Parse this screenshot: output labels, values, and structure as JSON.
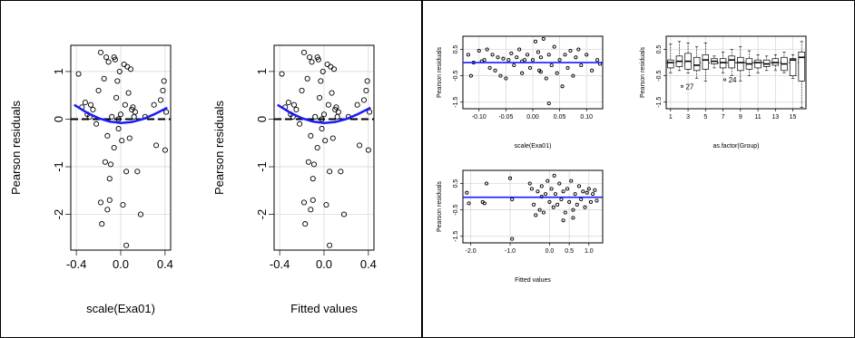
{
  "colors": {
    "fit_line": "#1a1aff",
    "points": "#000000",
    "grid": "#d3d3d3",
    "zero_line": "#000000"
  },
  "chart_data": [
    {
      "type": "scatter",
      "xlabel": "scale(Exa01)",
      "ylabel": "Pearson residuals",
      "xlim": [
        -0.45,
        0.45
      ],
      "ylim": [
        -2.75,
        1.55
      ],
      "xticks": [
        -0.4,
        0.0,
        0.4
      ],
      "xtick_labels": [
        "-0.4",
        "0.0",
        "0.4"
      ],
      "yticks": [
        -2,
        -1,
        0,
        1
      ],
      "ytick_labels": [
        "-2",
        "-1",
        "0",
        "1"
      ],
      "grid": true,
      "zero_line": "dashed",
      "fit_curve": [
        [
          -0.42,
          0.3
        ],
        [
          -0.3,
          0.13
        ],
        [
          -0.2,
          0.02
        ],
        [
          -0.1,
          -0.05
        ],
        [
          0.0,
          -0.08
        ],
        [
          0.1,
          -0.06
        ],
        [
          0.2,
          0.0
        ],
        [
          0.3,
          0.1
        ],
        [
          0.42,
          0.24
        ]
      ],
      "points": [
        [
          -0.38,
          0.95
        ],
        [
          -0.35,
          0.25
        ],
        [
          -0.32,
          0.35
        ],
        [
          -0.3,
          0.1
        ],
        [
          -0.28,
          0.05
        ],
        [
          -0.27,
          0.3
        ],
        [
          -0.25,
          0.2
        ],
        [
          -0.22,
          -0.1
        ],
        [
          -0.2,
          0.6
        ],
        [
          -0.18,
          1.4
        ],
        [
          -0.18,
          -1.75
        ],
        [
          -0.17,
          -2.2
        ],
        [
          -0.15,
          0.85
        ],
        [
          -0.14,
          -0.9
        ],
        [
          -0.13,
          1.3
        ],
        [
          -0.12,
          -0.35
        ],
        [
          -0.12,
          -1.9
        ],
        [
          -0.11,
          1.2
        ],
        [
          -0.1,
          -1.7
        ],
        [
          -0.1,
          -1.25
        ],
        [
          -0.09,
          -0.95
        ],
        [
          -0.08,
          0.05
        ],
        [
          -0.06,
          1.3
        ],
        [
          -0.06,
          -0.6
        ],
        [
          -0.05,
          1.25
        ],
        [
          -0.04,
          0.45
        ],
        [
          -0.03,
          0.8
        ],
        [
          -0.02,
          0.0
        ],
        [
          -0.02,
          -0.2
        ],
        [
          -0.01,
          1.0
        ],
        [
          0.0,
          0.1
        ],
        [
          0.01,
          -0.45
        ],
        [
          0.02,
          -1.8
        ],
        [
          0.03,
          1.15
        ],
        [
          0.04,
          0.3
        ],
        [
          0.05,
          -1.1
        ],
        [
          0.05,
          -2.65
        ],
        [
          0.06,
          1.1
        ],
        [
          0.07,
          0.55
        ],
        [
          0.08,
          -0.4
        ],
        [
          0.09,
          1.05
        ],
        [
          0.1,
          0.2
        ],
        [
          0.11,
          0.25
        ],
        [
          0.12,
          0.05
        ],
        [
          0.13,
          0.15
        ],
        [
          0.15,
          -1.1
        ],
        [
          0.18,
          -2.0
        ],
        [
          0.22,
          0.05
        ],
        [
          0.3,
          0.3
        ],
        [
          0.32,
          -0.55
        ],
        [
          0.36,
          0.4
        ],
        [
          0.38,
          0.6
        ],
        [
          0.39,
          0.8
        ],
        [
          0.4,
          -0.65
        ],
        [
          0.41,
          0.15
        ]
      ]
    },
    {
      "type": "scatter",
      "xlabel": "Fitted values",
      "ylabel": "Pearson residuals",
      "xlim": [
        -0.45,
        0.45
      ],
      "ylim": [
        -2.75,
        1.55
      ],
      "xticks": [
        -0.4,
        0.0,
        0.4
      ],
      "xtick_labels": [
        "-0.4",
        "0.0",
        "0.4"
      ],
      "yticks": [
        -2,
        -1,
        0,
        1
      ],
      "ytick_labels": [
        "-2",
        "-1",
        "0",
        "1"
      ],
      "grid": true,
      "zero_line": "dashed",
      "fit_curve": [
        [
          -0.42,
          0.3
        ],
        [
          -0.3,
          0.13
        ],
        [
          -0.2,
          0.02
        ],
        [
          -0.1,
          -0.05
        ],
        [
          0.0,
          -0.08
        ],
        [
          0.1,
          -0.06
        ],
        [
          0.2,
          0.0
        ],
        [
          0.3,
          0.1
        ],
        [
          0.42,
          0.24
        ]
      ],
      "points": [
        [
          -0.38,
          0.95
        ],
        [
          -0.35,
          0.25
        ],
        [
          -0.32,
          0.35
        ],
        [
          -0.3,
          0.1
        ],
        [
          -0.28,
          0.05
        ],
        [
          -0.27,
          0.3
        ],
        [
          -0.25,
          0.2
        ],
        [
          -0.22,
          -0.1
        ],
        [
          -0.2,
          0.6
        ],
        [
          -0.18,
          1.4
        ],
        [
          -0.18,
          -1.75
        ],
        [
          -0.17,
          -2.2
        ],
        [
          -0.15,
          0.85
        ],
        [
          -0.14,
          -0.9
        ],
        [
          -0.13,
          1.3
        ],
        [
          -0.12,
          -0.35
        ],
        [
          -0.12,
          -1.9
        ],
        [
          -0.11,
          1.2
        ],
        [
          -0.1,
          -1.7
        ],
        [
          -0.1,
          -1.25
        ],
        [
          -0.09,
          -0.95
        ],
        [
          -0.08,
          0.05
        ],
        [
          -0.06,
          1.3
        ],
        [
          -0.06,
          -0.6
        ],
        [
          -0.05,
          1.25
        ],
        [
          -0.04,
          0.45
        ],
        [
          -0.03,
          0.8
        ],
        [
          -0.02,
          0.0
        ],
        [
          -0.02,
          -0.2
        ],
        [
          -0.01,
          1.0
        ],
        [
          0.0,
          0.1
        ],
        [
          0.01,
          -0.45
        ],
        [
          0.02,
          -1.8
        ],
        [
          0.03,
          1.15
        ],
        [
          0.04,
          0.3
        ],
        [
          0.05,
          -1.1
        ],
        [
          0.05,
          -2.65
        ],
        [
          0.06,
          1.1
        ],
        [
          0.07,
          0.55
        ],
        [
          0.08,
          -0.4
        ],
        [
          0.09,
          1.05
        ],
        [
          0.1,
          0.2
        ],
        [
          0.11,
          0.25
        ],
        [
          0.12,
          0.05
        ],
        [
          0.13,
          0.15
        ],
        [
          0.15,
          -1.1
        ],
        [
          0.18,
          -2.0
        ],
        [
          0.22,
          0.05
        ],
        [
          0.3,
          0.3
        ],
        [
          0.32,
          -0.55
        ],
        [
          0.36,
          0.4
        ],
        [
          0.38,
          0.6
        ],
        [
          0.39,
          0.8
        ],
        [
          0.4,
          -0.65
        ],
        [
          0.41,
          0.15
        ]
      ]
    },
    {
      "type": "scatter",
      "xlabel": "scale(Exa01)",
      "ylabel": "Pearson residuals",
      "xlim": [
        -0.13,
        0.13
      ],
      "ylim": [
        -1.75,
        1.0
      ],
      "xticks": [
        -0.1,
        -0.05,
        0.0,
        0.05,
        0.1
      ],
      "xtick_labels": [
        "-0.10",
        "-0.05",
        "0.00",
        "0.05",
        "0.10"
      ],
      "yticks": [
        0.5,
        -0.5,
        -1.5
      ],
      "ytick_labels": [
        "0.5",
        "-0.5",
        "-1.5"
      ],
      "grid": true,
      "fit_line": [
        [
          -0.13,
          0.0
        ],
        [
          0.13,
          0.0
        ]
      ],
      "points": [
        [
          -0.12,
          0.3
        ],
        [
          -0.115,
          -0.5
        ],
        [
          -0.11,
          0.0
        ],
        [
          -0.1,
          0.45
        ],
        [
          -0.09,
          0.1
        ],
        [
          -0.085,
          0.5
        ],
        [
          -0.08,
          -0.2
        ],
        [
          -0.075,
          0.3
        ],
        [
          -0.07,
          -0.3
        ],
        [
          -0.065,
          0.2
        ],
        [
          -0.06,
          -0.5
        ],
        [
          -0.055,
          0.15
        ],
        [
          -0.05,
          -0.6
        ],
        [
          -0.045,
          0.1
        ],
        [
          -0.04,
          0.35
        ],
        [
          -0.035,
          -0.1
        ],
        [
          -0.03,
          0.2
        ],
        [
          -0.025,
          0.5
        ],
        [
          -0.02,
          -0.4
        ],
        [
          -0.015,
          0.1
        ],
        [
          -0.01,
          0.3
        ],
        [
          -0.005,
          -0.2
        ],
        [
          0.0,
          0.1
        ],
        [
          0.005,
          0.8
        ],
        [
          0.01,
          0.4
        ],
        [
          0.012,
          -0.3
        ],
        [
          0.015,
          0.2
        ],
        [
          0.02,
          0.9
        ],
        [
          0.025,
          -0.6
        ],
        [
          0.03,
          0.3
        ],
        [
          0.035,
          -0.1
        ],
        [
          0.04,
          0.6
        ],
        [
          0.045,
          -0.4
        ],
        [
          0.05,
          0.1
        ],
        [
          0.055,
          -0.9
        ],
        [
          0.06,
          0.3
        ],
        [
          0.065,
          -0.2
        ],
        [
          0.07,
          0.45
        ],
        [
          0.075,
          -0.5
        ],
        [
          0.08,
          0.2
        ],
        [
          0.09,
          -0.1
        ],
        [
          0.1,
          0.3
        ],
        [
          0.11,
          -0.3
        ],
        [
          0.12,
          0.1
        ],
        [
          0.125,
          -0.05
        ],
        [
          0.03,
          -1.55
        ],
        [
          -0.095,
          0.05
        ],
        [
          0.085,
          0.5
        ],
        [
          -0.02,
          0.05
        ],
        [
          0.015,
          -0.35
        ]
      ]
    },
    {
      "type": "box",
      "xlabel": "as.factor(Group)",
      "ylabel": "Pearson residuals",
      "categories": [
        "1",
        "2",
        "3",
        "4",
        "5",
        "6",
        "7",
        "8",
        "9",
        "10",
        "11",
        "12",
        "13",
        "14",
        "15",
        "16"
      ],
      "xtick_labels": [
        "1",
        "3",
        "5",
        "7",
        "9",
        "11",
        "13",
        "15"
      ],
      "ylim": [
        -1.75,
        1.0
      ],
      "yticks": [
        0.5,
        -0.5,
        -1.5
      ],
      "ytick_labels": [
        "0.5",
        "-0.5",
        "-1.5"
      ],
      "grid": true,
      "zero_line": "dashed",
      "annotations": [
        "27",
        "24"
      ],
      "boxes": [
        {
          "min": -0.4,
          "q1": -0.2,
          "median": 0.0,
          "q3": 0.1,
          "max": 0.7
        },
        {
          "min": -0.3,
          "q1": -0.15,
          "median": 0.05,
          "q3": 0.25,
          "max": 0.8
        },
        {
          "min": -0.4,
          "q1": -0.25,
          "median": 0.05,
          "q3": 0.35,
          "max": 0.75
        },
        {
          "min": -0.6,
          "q1": -0.3,
          "median": -0.1,
          "q3": 0.2,
          "max": 0.6
        },
        {
          "min": -0.7,
          "q1": -0.25,
          "median": 0.1,
          "q3": 0.3,
          "max": 0.75
        },
        {
          "min": -0.2,
          "q1": -0.05,
          "median": 0.05,
          "q3": 0.15,
          "max": 0.25
        },
        {
          "min": -0.4,
          "q1": -0.2,
          "median": 0.0,
          "q3": 0.15,
          "max": 0.4
        },
        {
          "min": -0.5,
          "q1": -0.2,
          "median": 0.1,
          "q3": 0.25,
          "max": 0.5
        },
        {
          "min": -0.7,
          "q1": -0.3,
          "median": 0.0,
          "q3": 0.2,
          "max": 0.6
        },
        {
          "min": -0.5,
          "q1": -0.25,
          "median": -0.05,
          "q3": 0.15,
          "max": 0.45
        },
        {
          "min": -0.4,
          "q1": -0.2,
          "median": 0.0,
          "q3": 0.1,
          "max": 0.3
        },
        {
          "min": -0.3,
          "q1": -0.15,
          "median": -0.05,
          "q3": 0.1,
          "max": 0.25
        },
        {
          "min": -0.3,
          "q1": -0.1,
          "median": 0.0,
          "q3": 0.15,
          "max": 0.3
        },
        {
          "min": -0.4,
          "q1": -0.3,
          "median": -0.05,
          "q3": 0.2,
          "max": 0.4
        },
        {
          "min": -0.6,
          "q1": -0.5,
          "median": 0.1,
          "q3": 0.15,
          "max": 0.3
        },
        {
          "min": -1.7,
          "q1": -0.7,
          "median": 0.2,
          "q3": 0.4,
          "max": 0.8
        }
      ]
    },
    {
      "type": "scatter",
      "xlabel": "Fitted values",
      "ylabel": "Pearson residuals",
      "xlim": [
        -2.2,
        1.35
      ],
      "ylim": [
        -1.75,
        1.0
      ],
      "xticks": [
        -2.0,
        -1.0,
        0.0,
        0.5,
        1.0
      ],
      "xtick_labels": [
        "-2.0",
        "-1.0",
        "0.0",
        "0.5",
        "1.0"
      ],
      "yticks": [
        0.5,
        -0.5,
        -1.5
      ],
      "ytick_labels": [
        "0.5",
        "-0.5",
        "-1.5"
      ],
      "grid": true,
      "fit_line": [
        [
          -2.2,
          -0.02
        ],
        [
          1.35,
          -0.02
        ]
      ],
      "points": [
        [
          -2.1,
          0.15
        ],
        [
          -2.05,
          -0.25
        ],
        [
          -1.7,
          -0.2
        ],
        [
          -1.65,
          -0.25
        ],
        [
          -1.6,
          0.5
        ],
        [
          -1.0,
          0.7
        ],
        [
          -0.95,
          -0.1
        ],
        [
          -0.95,
          -1.6
        ],
        [
          -0.5,
          0.5
        ],
        [
          -0.45,
          0.3
        ],
        [
          -0.4,
          -0.3
        ],
        [
          -0.35,
          -0.7
        ],
        [
          -0.3,
          0.2
        ],
        [
          -0.25,
          -0.5
        ],
        [
          -0.2,
          0.4
        ],
        [
          -0.15,
          -0.6
        ],
        [
          -0.1,
          0.1
        ],
        [
          -0.05,
          0.6
        ],
        [
          0.0,
          -0.2
        ],
        [
          0.05,
          0.3
        ],
        [
          0.1,
          -0.4
        ],
        [
          0.12,
          0.8
        ],
        [
          0.15,
          0.1
        ],
        [
          0.2,
          -0.3
        ],
        [
          0.25,
          0.5
        ],
        [
          0.3,
          -0.1
        ],
        [
          0.35,
          0.2
        ],
        [
          0.4,
          -0.6
        ],
        [
          0.45,
          0.3
        ],
        [
          0.5,
          -0.2
        ],
        [
          0.55,
          0.6
        ],
        [
          0.6,
          -0.8
        ],
        [
          0.65,
          0.1
        ],
        [
          0.7,
          -0.3
        ],
        [
          0.75,
          0.4
        ],
        [
          0.8,
          -0.1
        ],
        [
          0.85,
          0.2
        ],
        [
          0.9,
          -0.4
        ],
        [
          0.95,
          0.15
        ],
        [
          1.0,
          0.3
        ],
        [
          1.05,
          -0.2
        ],
        [
          1.1,
          0.1
        ],
        [
          1.15,
          0.25
        ],
        [
          1.2,
          -0.15
        ],
        [
          0.35,
          -0.9
        ],
        [
          -0.2,
          0.0
        ],
        [
          0.6,
          -0.5
        ]
      ]
    }
  ]
}
